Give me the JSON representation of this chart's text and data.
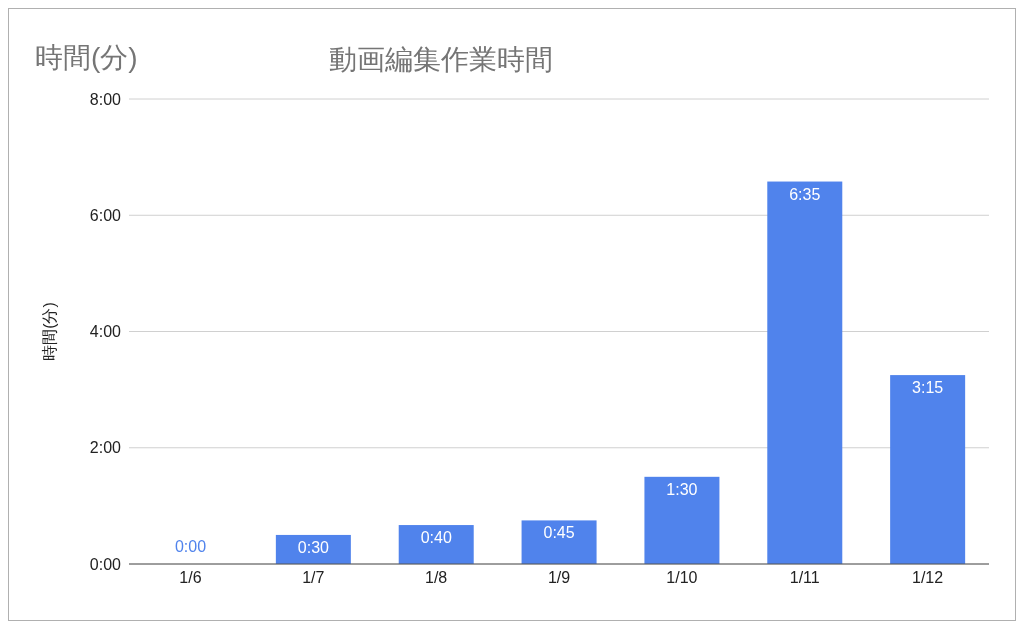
{
  "chart_data": {
    "type": "bar",
    "title": "動画編集作業時間",
    "ylabel": "時間(分)",
    "annotations": [
      "時間(分)"
    ],
    "categories": [
      "1/6",
      "1/7",
      "1/8",
      "1/9",
      "1/10",
      "1/11",
      "1/12"
    ],
    "values": [
      0,
      0.5,
      0.67,
      0.75,
      1.5,
      6.58,
      3.25
    ],
    "value_labels": [
      "0:00",
      "0:30",
      "0:40",
      "0:45",
      "1:30",
      "6:35",
      "3:15"
    ],
    "color": "#5083ec",
    "ylim": [
      0,
      8
    ],
    "yticks": [
      {
        "value": 0,
        "label": "0:00"
      },
      {
        "value": 2,
        "label": "2:00"
      },
      {
        "value": 4,
        "label": "4:00"
      },
      {
        "value": 6,
        "label": "6:00"
      },
      {
        "value": 8,
        "label": "8:00"
      }
    ],
    "grid": "y",
    "legend": false
  }
}
